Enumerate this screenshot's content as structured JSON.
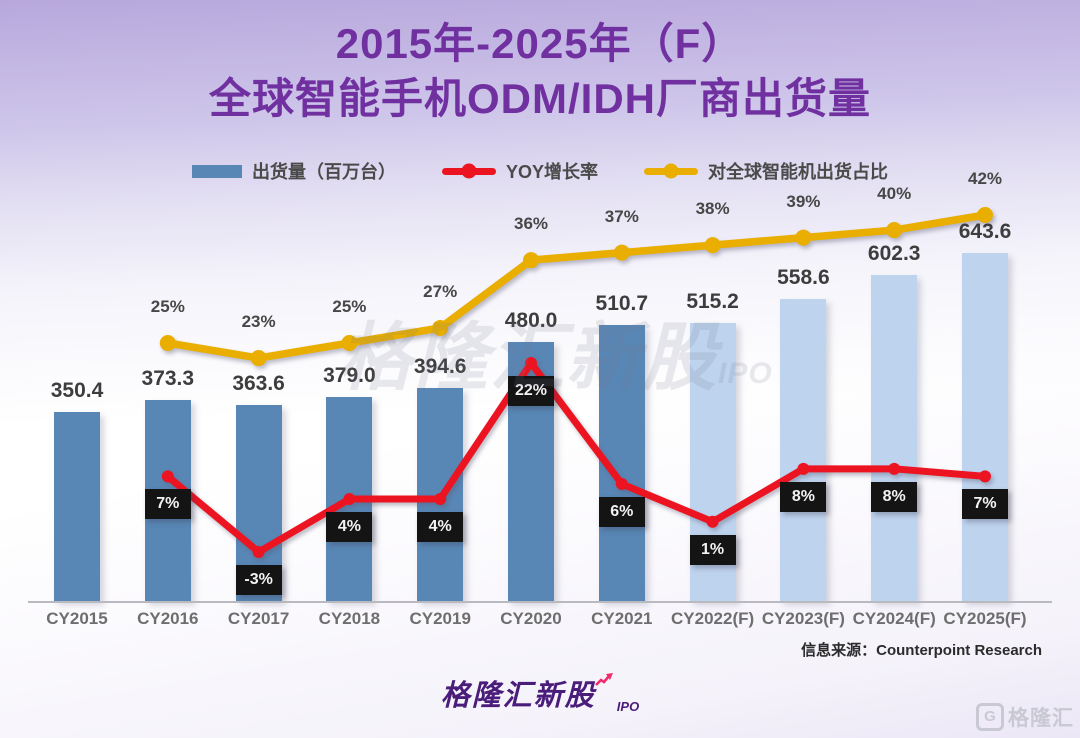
{
  "title": {
    "line1": "2015年-2025年（F）",
    "line2": "全球智能手机ODM/IDH厂商出货量"
  },
  "legend": [
    {
      "label": "出货量（百万台）",
      "marker": "bar-swatch"
    },
    {
      "label": "YOY增长率",
      "marker": "line-dot-swatch"
    },
    {
      "label": "对全球智能机出货占比",
      "marker": "line-dot-swatch"
    }
  ],
  "chart_data": {
    "type": "bar",
    "title": "2015年-2025年（F）全球智能手机ODM/IDH厂商出货量",
    "categories": [
      "CY2015",
      "CY2016",
      "CY2017",
      "CY2018",
      "CY2019",
      "CY2020",
      "CY2021",
      "CY2022(F)",
      "CY2023(F)",
      "CY2024(F)",
      "CY2025(F)"
    ],
    "series": [
      {
        "name": "出货量（百万台）",
        "type": "bar",
        "values": [
          350.4,
          373.3,
          363.6,
          379.0,
          394.6,
          480.0,
          510.7,
          515.2,
          558.6,
          602.3,
          643.6
        ],
        "forecast_from_index": 7
      },
      {
        "name": "YOY增长率",
        "type": "line",
        "unit": "%",
        "values": [
          null,
          7,
          -3,
          4,
          4,
          22,
          6,
          1,
          8,
          8,
          7
        ]
      },
      {
        "name": "对全球智能机出货占比",
        "type": "line",
        "unit": "%",
        "values": [
          null,
          25,
          23,
          25,
          27,
          36,
          37,
          38,
          39,
          40,
          42
        ]
      }
    ],
    "legend_position": "top",
    "grid": false,
    "value_axis_visible": false
  },
  "colors": {
    "title": "#7030a0",
    "bar": "#5886b5",
    "bar_forecast": "#bed3ee",
    "yoy_line": "#ec1420",
    "share_line": "#e9ae00",
    "yoy_label_bg": "#141414"
  },
  "watermark_center": {
    "text": "格隆汇新股",
    "sub": "IPO"
  },
  "source_note": "信息来源：Counterpoint Research",
  "footer_logo": {
    "text": "格隆汇新股",
    "sub": "IPO"
  },
  "corner_logo": {
    "g": "G",
    "text": "格隆汇"
  }
}
